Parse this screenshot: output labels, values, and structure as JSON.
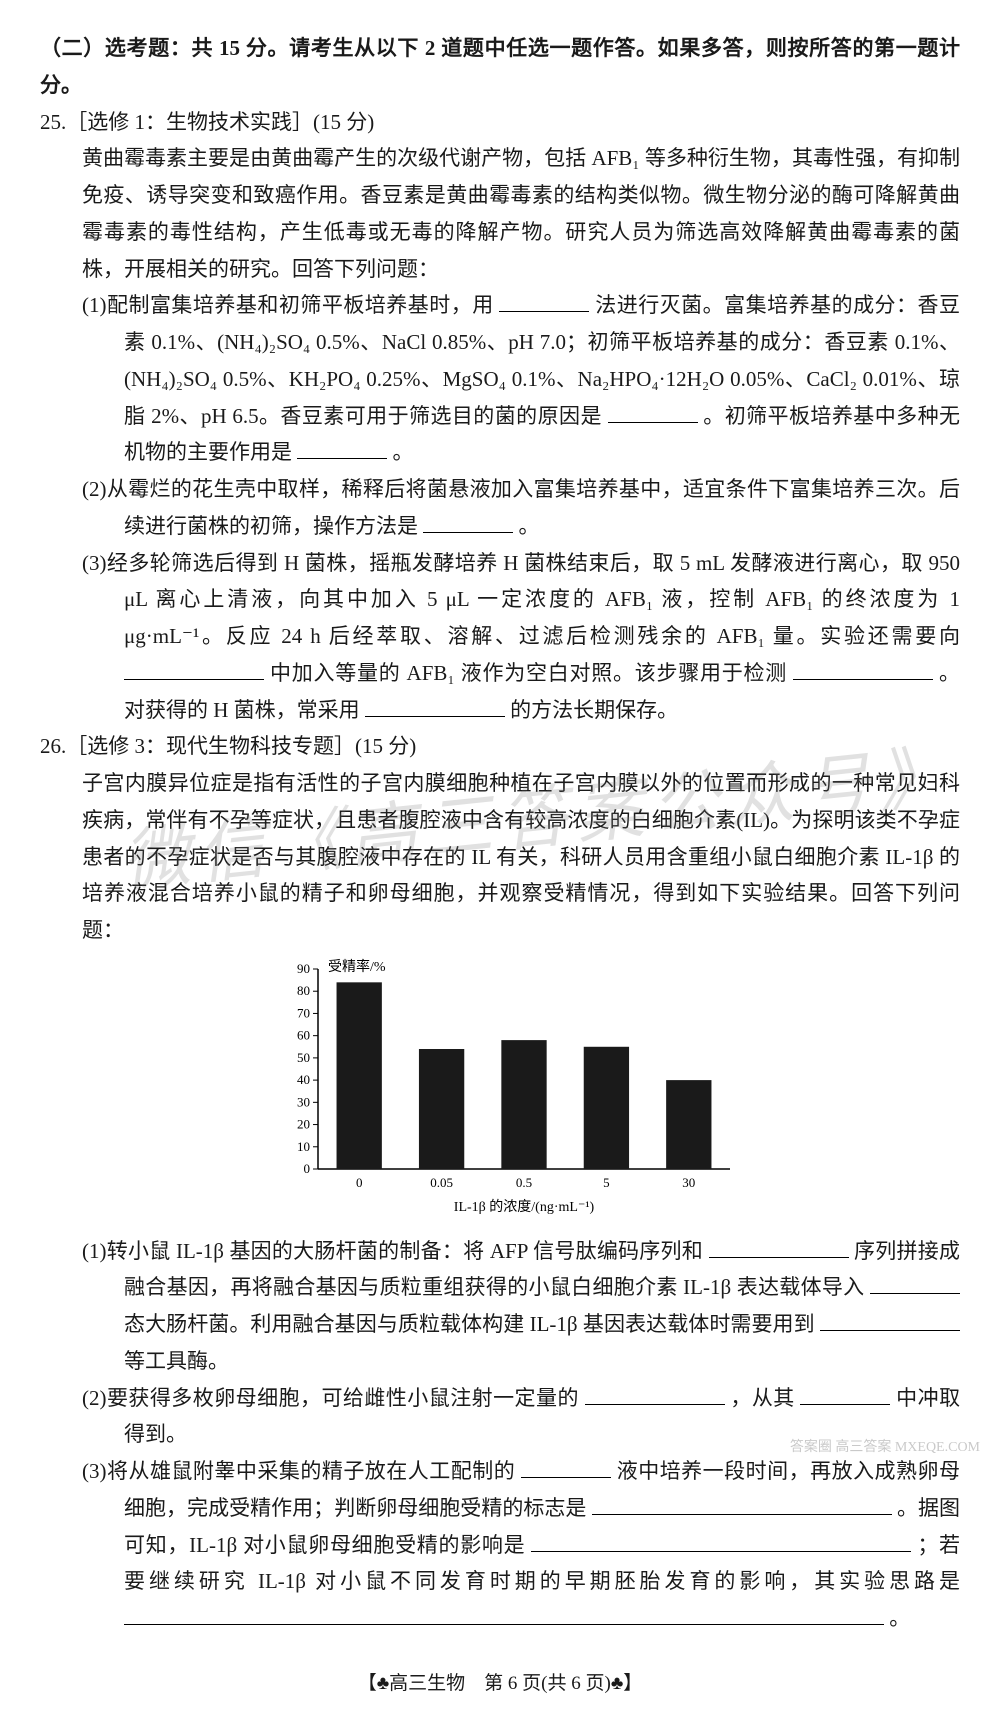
{
  "header": {
    "section_title": "（二）选考题：共 15 分。请考生从以下 2 道题中任选一题作答。如果多答，则按所答的第一题计分。"
  },
  "q25": {
    "title": "25.［选修 1：生物技术实践］(15 分)",
    "intro": "黄曲霉毒素主要是由黄曲霉产生的次级代谢产物，包括 AFB₁ 等多种衍生物，其毒性强，有抑制免疫、诱导突变和致癌作用。香豆素是黄曲霉毒素的结构类似物。微生物分泌的酶可降解黄曲霉毒素的毒性结构，产生低毒或无毒的降解产物。研究人员为筛选高效降解黄曲霉毒素的菌株，开展相关的研究。回答下列问题：",
    "p1a": "(1)配制富集培养基和初筛平板培养基时，用",
    "p1b": "法进行灭菌。富集培养基的成分：香豆素 0.1%、(NH₄)₂SO₄ 0.5%、NaCl 0.85%、pH 7.0；初筛平板培养基的成分：香豆素 0.1%、(NH₄)₂SO₄ 0.5%、KH₂PO₄ 0.25%、MgSO₄ 0.1%、Na₂HPO₄·12H₂O 0.05%、CaCl₂ 0.01%、琼脂 2%、pH 6.5。香豆素可用于筛选目的菌的原因是",
    "p1c": "。初筛平板培养基中多种无机物的主要作用是",
    "p1d": "。",
    "p2a": "(2)从霉烂的花生壳中取样，稀释后将菌悬液加入富集培养基中，适宜条件下富集培养三次。后续进行菌株的初筛，操作方法是",
    "p2b": "。",
    "p3a": "(3)经多轮筛选后得到 H 菌株，摇瓶发酵培养 H 菌株结束后，取 5 mL 发酵液进行离心，取 950 μL 离心上清液，向其中加入 5 μL 一定浓度的 AFB₁ 液，控制 AFB₁ 的终浓度为 1 μg·mL⁻¹。反应 24 h 后经萃取、溶解、过滤后检测残余的 AFB₁ 量。实验还需要向",
    "p3b": "中加入等量的 AFB₁ 液作为空白对照。该步骤用于检测",
    "p3c": "。对获得的 H 菌株，常采用",
    "p3d": "的方法长期保存。"
  },
  "q26": {
    "title": "26.［选修 3：现代生物科技专题］(15 分)",
    "intro": "子宫内膜异位症是指有活性的子宫内膜细胞种植在子宫内膜以外的位置而形成的一种常见妇科疾病，常伴有不孕等症状，且患者腹腔液中含有较高浓度的白细胞介素(IL)。为探明该类不孕症患者的不孕症状是否与其腹腔液中存在的 IL 有关，科研人员用含重组小鼠白细胞介素 IL-1β 的培养液混合培养小鼠的精子和卵母细胞，并观察受精情况，得到如下实验结果。回答下列问题：",
    "chart": {
      "type": "bar",
      "y_label": "受精率/%",
      "x_label": "IL-1β 的浓度/(ng·mL⁻¹)",
      "categories": [
        "0",
        "0.05",
        "0.5",
        "5",
        "30"
      ],
      "values": [
        84,
        54,
        58,
        55,
        40
      ],
      "ylim": [
        0,
        90
      ],
      "ytick_step": 10,
      "bar_color": "#1a1a1a",
      "axis_color": "#000000",
      "background": "#ffffff",
      "label_fontsize": 14,
      "tick_fontsize": 13,
      "bar_width_ratio": 0.55
    },
    "p1a": "(1)转小鼠 IL-1β 基因的大肠杆菌的制备：将 AFP 信号肽编码序列和",
    "p1b": "序列拼接成融合基因，再将融合基因与质粒重组获得的小鼠白细胞介素 IL-1β 表达载体导入",
    "p1c": "态大肠杆菌。利用融合基因与质粒载体构建 IL-1β 基因表达载体时需要用到",
    "p1d": "等工具酶。",
    "p2a": "(2)要获得多枚卵母细胞，可给雌性小鼠注射一定量的",
    "p2b": "，从其",
    "p2c": "中冲取得到。",
    "p3a": "(3)将从雄鼠附睾中采集的精子放在人工配制的",
    "p3b": "液中培养一段时间，再放入成熟卵母细胞，完成受精作用；判断卵母细胞受精的标志是",
    "p3c": "。据图可知，IL-1β 对小鼠卵母细胞受精的影响是",
    "p3d": "；若要继续研究 IL-1β 对小鼠不同发育时期的早期胚胎发育的影响，其实验思路是",
    "p3e": "。"
  },
  "footer": {
    "text": "【♣高三生物　第 6 页(共 6 页)♣】"
  },
  "watermark": "微信《高三答案公众号》",
  "corner": "答案圈\n高三答案\nMXEQE.COM"
}
